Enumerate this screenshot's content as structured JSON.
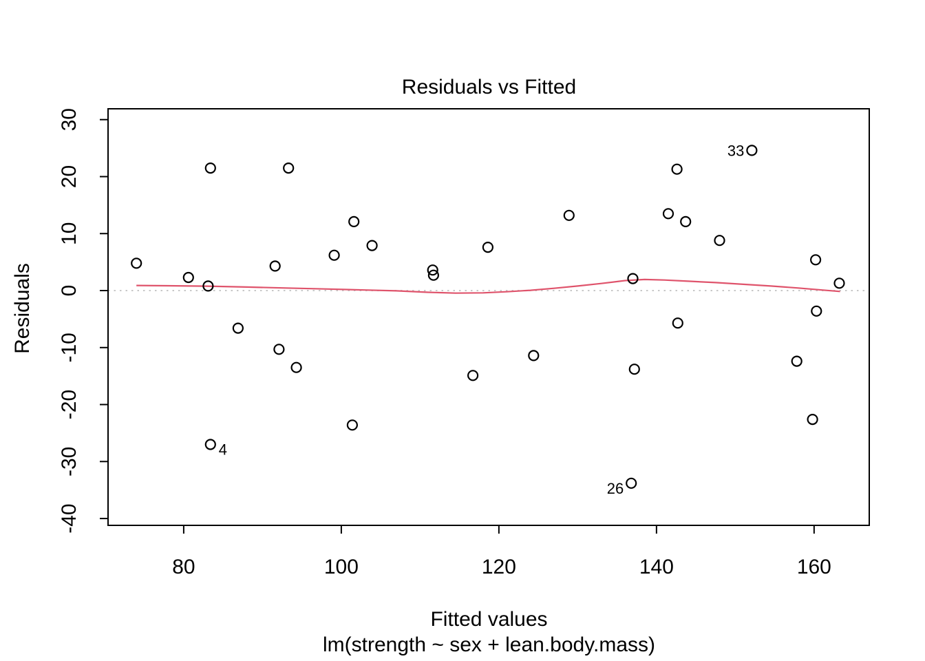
{
  "figure": {
    "title": "Residuals vs Fitted",
    "xlabel": "Fitted values",
    "xlabel_sub": "lm(strength ~ sex + lean.body.mass)",
    "ylabel": "Residuals"
  },
  "chart_data": {
    "type": "scatter",
    "title": "Residuals vs Fitted",
    "xlabel": "Fitted values",
    "ylabel": "Residuals",
    "model_caption": "lm(strength ~ sex + lean.body.mass)",
    "xlim": [
      70.4,
      167.0
    ],
    "ylim": [
      -41.2,
      31.9
    ],
    "x_ticks": [
      80,
      100,
      120,
      140,
      160
    ],
    "y_ticks": [
      -40,
      -30,
      -20,
      -10,
      0,
      10,
      20,
      30
    ],
    "grid": false,
    "legend": "none",
    "marker": "open-circle",
    "marker_color": "#000000",
    "frame_color": "#000000",
    "zero_line": {
      "y": 0,
      "style": "dotted",
      "color": "#c8c8c8"
    },
    "points": [
      {
        "x": 74.0,
        "y": 4.8
      },
      {
        "x": 80.6,
        "y": 2.3
      },
      {
        "x": 83.1,
        "y": 0.8
      },
      {
        "x": 83.4,
        "y": 21.5
      },
      {
        "x": 83.4,
        "y": -27.0,
        "label": "4",
        "label_side": "right"
      },
      {
        "x": 86.9,
        "y": -6.6
      },
      {
        "x": 91.6,
        "y": 4.3
      },
      {
        "x": 92.1,
        "y": -10.3
      },
      {
        "x": 93.3,
        "y": 21.5
      },
      {
        "x": 94.3,
        "y": -13.5
      },
      {
        "x": 99.1,
        "y": 6.2
      },
      {
        "x": 101.4,
        "y": -23.6
      },
      {
        "x": 101.6,
        "y": 12.1
      },
      {
        "x": 103.9,
        "y": 7.9
      },
      {
        "x": 111.6,
        "y": 3.6
      },
      {
        "x": 111.7,
        "y": 2.7
      },
      {
        "x": 116.7,
        "y": -14.9
      },
      {
        "x": 118.6,
        "y": 7.6
      },
      {
        "x": 124.4,
        "y": -11.4
      },
      {
        "x": 128.9,
        "y": 13.2
      },
      {
        "x": 136.8,
        "y": -33.8,
        "label": "26",
        "label_side": "left"
      },
      {
        "x": 137.0,
        "y": 2.1
      },
      {
        "x": 137.2,
        "y": -13.8
      },
      {
        "x": 141.5,
        "y": 13.5
      },
      {
        "x": 142.6,
        "y": 21.3
      },
      {
        "x": 142.7,
        "y": -5.7
      },
      {
        "x": 143.7,
        "y": 12.1
      },
      {
        "x": 148.0,
        "y": 8.8
      },
      {
        "x": 152.1,
        "y": 24.6,
        "label": "33",
        "label_side": "left"
      },
      {
        "x": 157.8,
        "y": -12.4
      },
      {
        "x": 159.8,
        "y": -22.6
      },
      {
        "x": 160.2,
        "y": 5.4
      },
      {
        "x": 160.3,
        "y": -3.6
      },
      {
        "x": 163.2,
        "y": 1.3
      }
    ],
    "smooth": {
      "name": "lowess",
      "color": "#DF536B",
      "points": [
        [
          74.0,
          0.9
        ],
        [
          78.0,
          0.85
        ],
        [
          83.0,
          0.78
        ],
        [
          88.0,
          0.62
        ],
        [
          93.0,
          0.45
        ],
        [
          98.0,
          0.28
        ],
        [
          103.0,
          0.1
        ],
        [
          107.0,
          -0.05
        ],
        [
          111.0,
          -0.3
        ],
        [
          114.5,
          -0.45
        ],
        [
          118.0,
          -0.4
        ],
        [
          121.0,
          -0.2
        ],
        [
          124.0,
          0.05
        ],
        [
          127.0,
          0.4
        ],
        [
          130.0,
          0.8
        ],
        [
          133.0,
          1.25
        ],
        [
          136.0,
          1.75
        ],
        [
          138.5,
          1.95
        ],
        [
          141.0,
          1.85
        ],
        [
          144.0,
          1.65
        ],
        [
          147.5,
          1.4
        ],
        [
          151.0,
          1.1
        ],
        [
          154.5,
          0.8
        ],
        [
          158.0,
          0.45
        ],
        [
          161.0,
          0.1
        ],
        [
          163.3,
          -0.15
        ]
      ]
    }
  }
}
